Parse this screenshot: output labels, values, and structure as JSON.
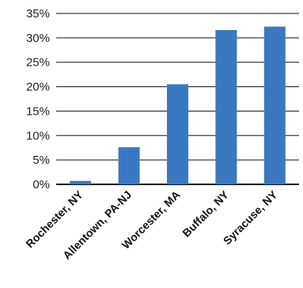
{
  "chart_data": {
    "type": "bar",
    "categories": [
      "Rochester, NY",
      "Allentown, PA-NJ",
      "Worcester, MA",
      "Buffalo, NY",
      "Syracuse, NY"
    ],
    "values": [
      0.7,
      7.6,
      20.5,
      31.6,
      32.3
    ],
    "ylim": [
      0,
      35
    ],
    "yticks": [
      0,
      5,
      10,
      15,
      20,
      25,
      30,
      35
    ],
    "ytick_labels": [
      "0%",
      "5%",
      "10%",
      "15%",
      "20%",
      "25%",
      "30%",
      "35%"
    ],
    "grid": true,
    "legend": "none",
    "title": "",
    "xlabel": "",
    "ylabel": "",
    "bar_color": "#3a78c2",
    "grid_color": "#111111"
  }
}
